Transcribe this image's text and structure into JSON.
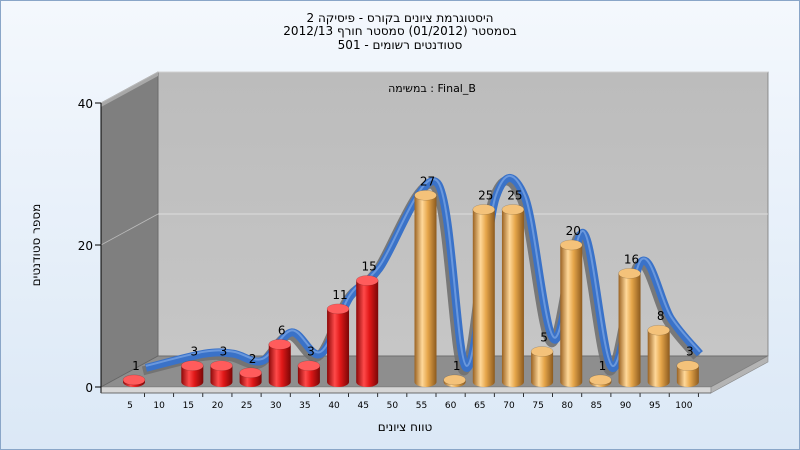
{
  "chart_data": {
    "type": "bar",
    "title_lines": [
      "היסטוגרמת ציונים בקורס - פיסיקה 2",
      "בסמסטר  (01/2012)  סמסטר חורף 2012/13",
      "501 - סטודנטים רשומים"
    ],
    "subtitle": "במשימה : Final_B",
    "xlabel": "טווח ציונים",
    "ylabel": "מספר סטודנטים",
    "x_ticks": [
      "5",
      "10",
      "15",
      "20",
      "25",
      "30",
      "35",
      "40",
      "45",
      "50",
      "55",
      "60",
      "65",
      "70",
      "75",
      "80",
      "85",
      "90",
      "95",
      "100"
    ],
    "y_ticks": [
      "0",
      "20",
      "40"
    ],
    "ylim": [
      0,
      40
    ],
    "grid": true,
    "bars": [
      {
        "x": 5,
        "value": 1,
        "color": "red"
      },
      {
        "x": 15,
        "value": 3,
        "color": "red"
      },
      {
        "x": 20,
        "value": 3,
        "color": "red"
      },
      {
        "x": 25,
        "value": 2,
        "color": "red"
      },
      {
        "x": 30,
        "value": 6,
        "color": "red"
      },
      {
        "x": 35,
        "value": 3,
        "color": "red"
      },
      {
        "x": 40,
        "value": 11,
        "color": "red"
      },
      {
        "x": 45,
        "value": 15,
        "color": "red"
      },
      {
        "x": 55,
        "value": 27,
        "color": "orange"
      },
      {
        "x": 60,
        "value": 1,
        "color": "orange"
      },
      {
        "x": 65,
        "value": 25,
        "color": "orange"
      },
      {
        "x": 70,
        "value": 25,
        "color": "orange"
      },
      {
        "x": 75,
        "value": 5,
        "color": "orange"
      },
      {
        "x": 80,
        "value": 20,
        "color": "orange"
      },
      {
        "x": 85,
        "value": 1,
        "color": "orange"
      },
      {
        "x": 90,
        "value": 16,
        "color": "orange"
      },
      {
        "x": 95,
        "value": 8,
        "color": "orange"
      },
      {
        "x": 100,
        "value": 3,
        "color": "orange"
      }
    ],
    "colors": {
      "red_bar": "#e01818",
      "orange_bar": "#e6a64a",
      "trend_line": "#3a72c8",
      "trend_shadow": "#707070",
      "plot_wall": "#c0c0c0",
      "side_wall": "#808080",
      "floor": "#909090"
    }
  }
}
